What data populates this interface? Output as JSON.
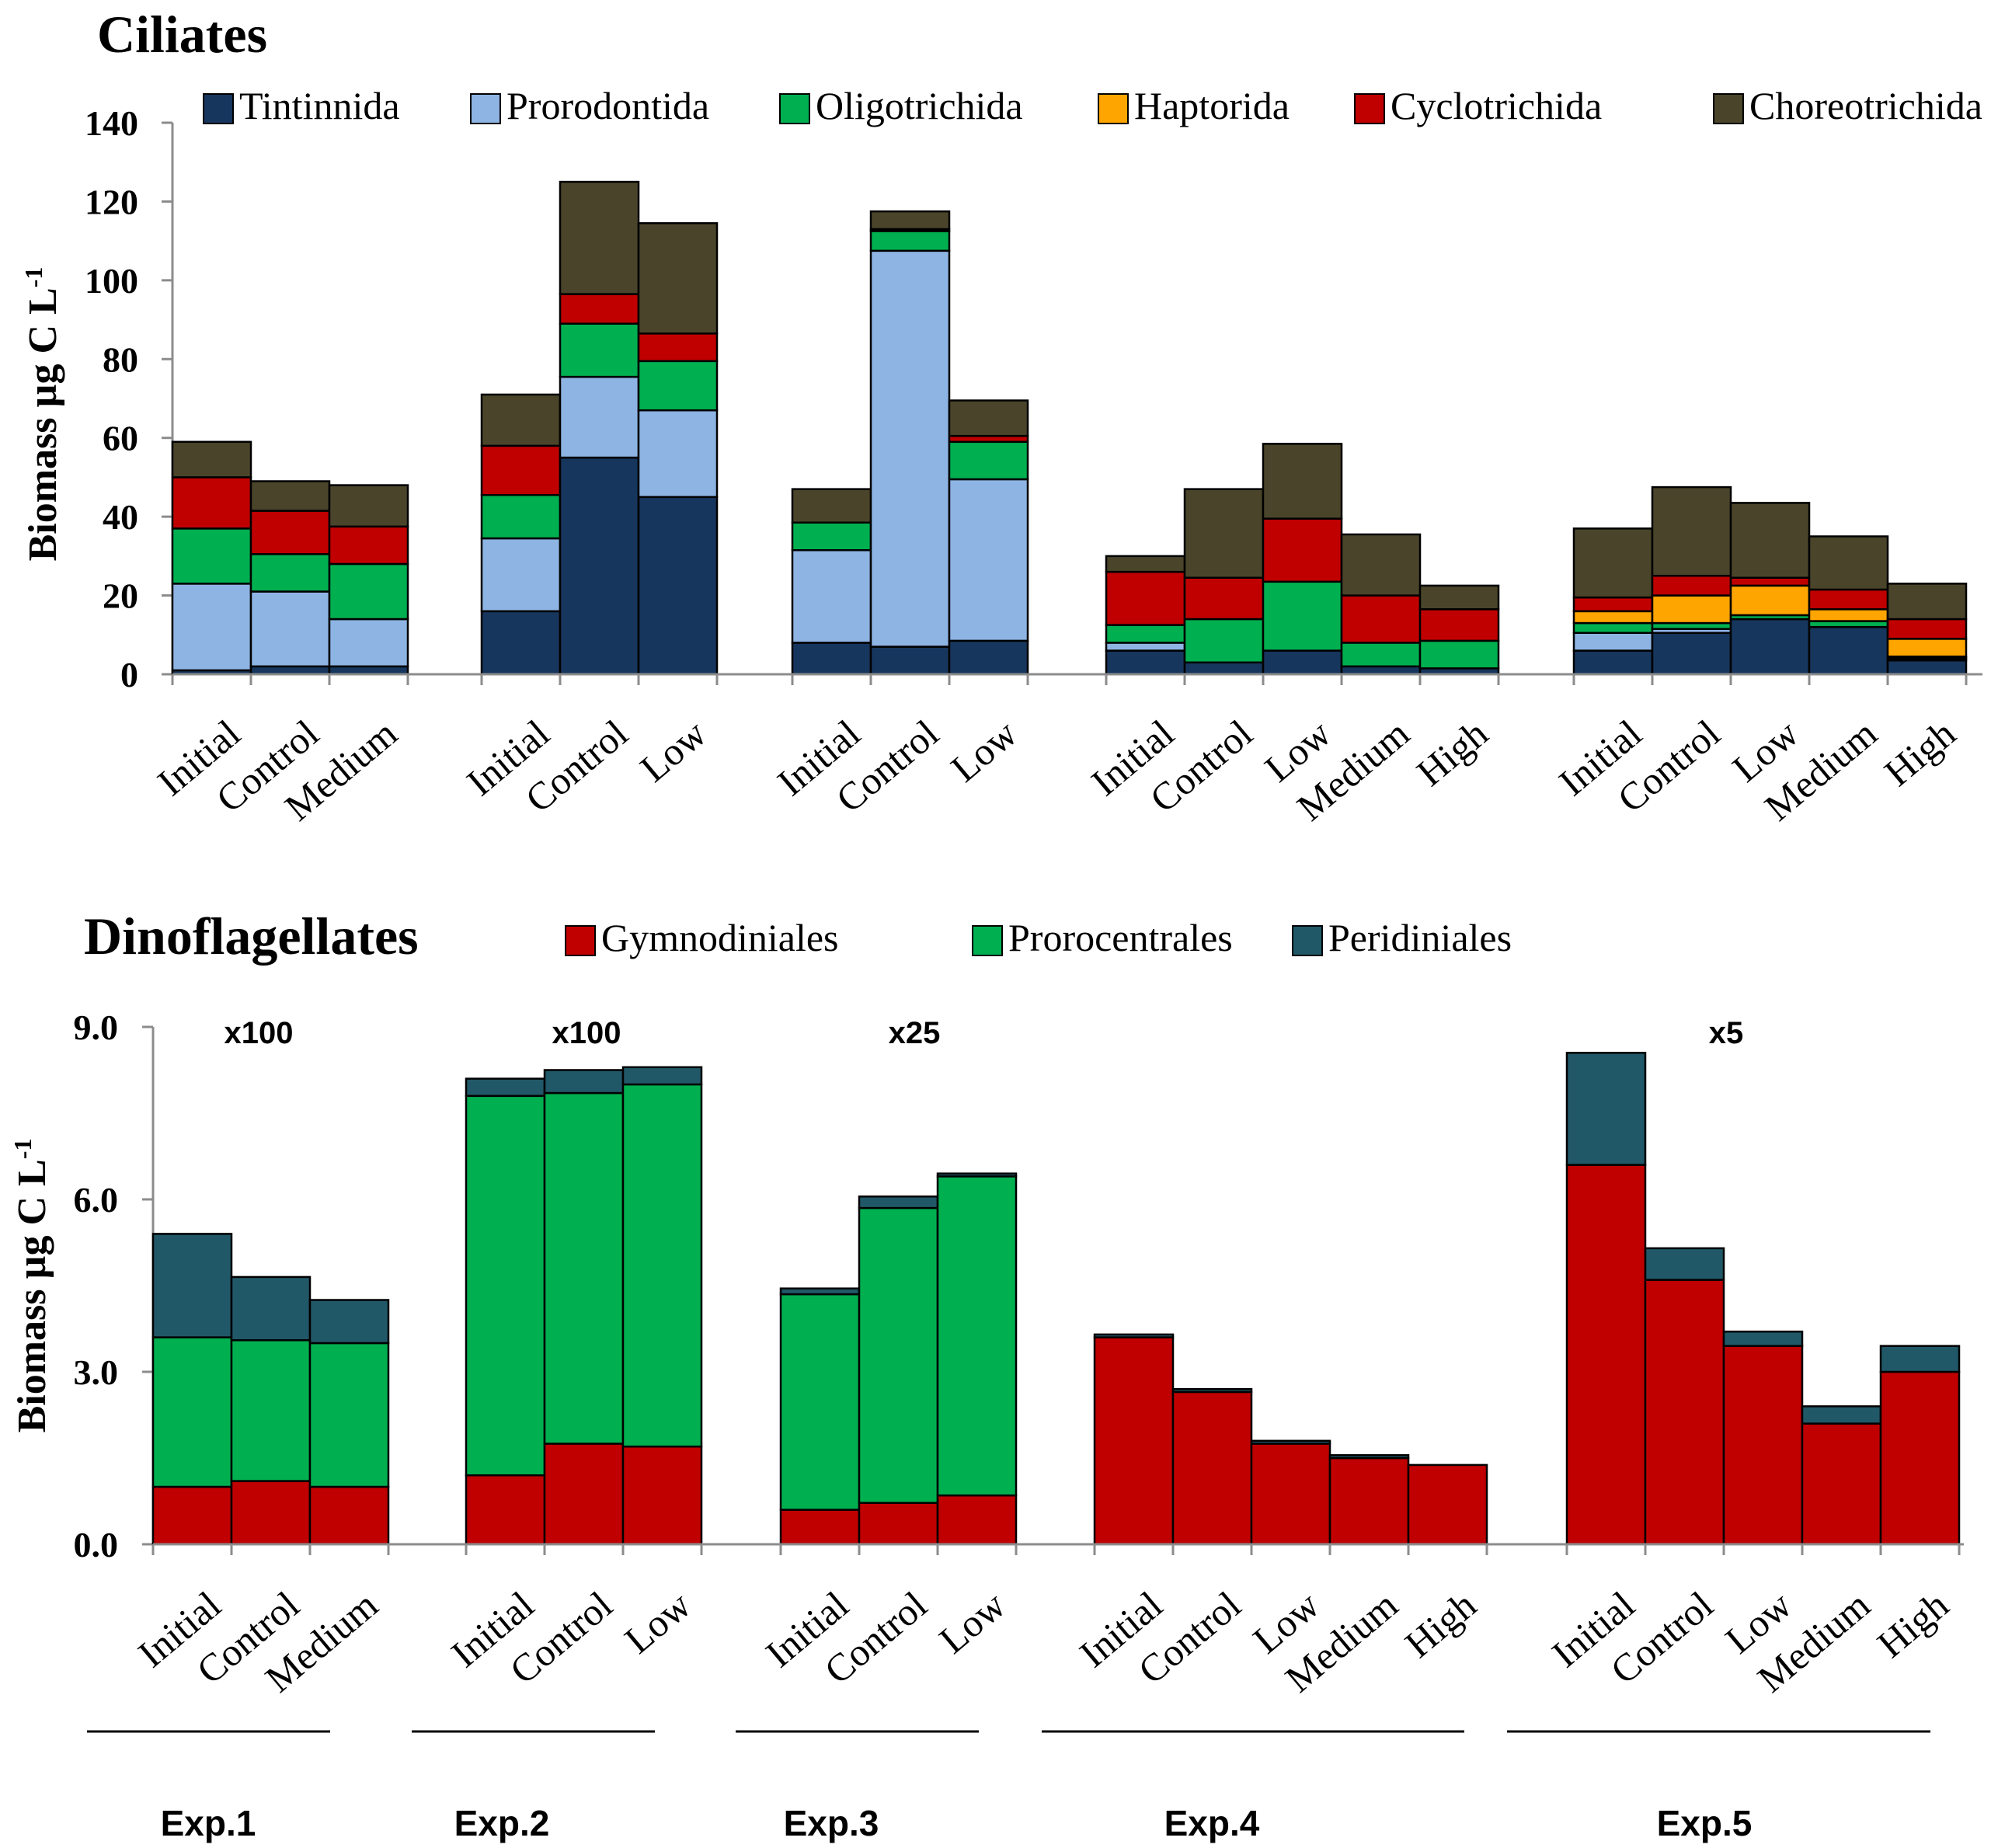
{
  "chart_data": [
    {
      "type": "bar",
      "stacked": true,
      "title": "Ciliates",
      "ylabel": "Biomass µg C L",
      "ylabel_superscript": "-1",
      "ylim": [
        0,
        140
      ],
      "yticks": [
        0,
        20,
        40,
        60,
        80,
        100,
        120,
        140
      ],
      "ytick_labels": [
        "0",
        "20",
        "40",
        "60",
        "80",
        "100",
        "120",
        "140"
      ],
      "legend": "top",
      "series": [
        {
          "name": "Tintinnida",
          "color": "#17365d"
        },
        {
          "name": "Prorodontida",
          "color": "#8eb4e3"
        },
        {
          "name": "Oligotrichida",
          "color": "#00b050"
        },
        {
          "name": "Haptorida",
          "color": "#ffa500"
        },
        {
          "name": "Cyclotrichida",
          "color": "#c00000"
        },
        {
          "name": "Choreotrichida",
          "color": "#4a452a"
        }
      ],
      "groups": [
        {
          "experiment": "Exp.1",
          "bars": [
            {
              "label": "Initial",
              "values": [
                1,
                22,
                14,
                0,
                13,
                9
              ]
            },
            {
              "label": "Control",
              "values": [
                2,
                19,
                9.5,
                0,
                11,
                7.5
              ]
            },
            {
              "label": "Medium",
              "values": [
                2,
                12,
                14,
                0,
                9.5,
                10.5
              ]
            }
          ]
        },
        {
          "experiment": "Exp.2",
          "bars": [
            {
              "label": "Initial",
              "values": [
                16,
                18.5,
                11,
                0,
                12.5,
                13
              ]
            },
            {
              "label": "Control",
              "values": [
                55,
                20.5,
                13.5,
                0,
                7.5,
                28.5
              ]
            },
            {
              "label": "Low",
              "values": [
                45,
                22,
                12.5,
                0,
                7,
                28
              ]
            }
          ]
        },
        {
          "experiment": "Exp.3",
          "bars": [
            {
              "label": "Initial",
              "values": [
                8,
                23.5,
                7,
                0,
                0,
                8.5
              ]
            },
            {
              "label": "Control",
              "values": [
                7,
                100.5,
                5,
                0,
                0.5,
                4.5
              ]
            },
            {
              "label": "Low",
              "values": [
                8.5,
                41,
                9.5,
                0,
                1.5,
                9
              ]
            }
          ]
        },
        {
          "experiment": "Exp.4",
          "bars": [
            {
              "label": "Initial",
              "values": [
                6,
                2,
                4.5,
                0,
                13.5,
                4
              ]
            },
            {
              "label": "Control",
              "values": [
                3,
                0,
                11,
                0,
                10.5,
                22.5
              ]
            },
            {
              "label": "Low",
              "values": [
                6,
                0,
                17.5,
                0,
                16,
                19
              ]
            },
            {
              "label": "Medium",
              "values": [
                2,
                0,
                6,
                0,
                12,
                15.5
              ]
            },
            {
              "label": "High",
              "values": [
                1.5,
                0,
                7,
                0,
                8,
                6
              ]
            }
          ]
        },
        {
          "experiment": "Exp.5",
          "bars": [
            {
              "label": "Initial",
              "values": [
                6,
                4.5,
                2.5,
                3,
                3.5,
                17.5
              ]
            },
            {
              "label": "Control",
              "values": [
                10.5,
                1,
                1.5,
                7,
                5,
                22.5
              ]
            },
            {
              "label": "Low",
              "values": [
                14,
                0,
                1,
                7.5,
                2,
                19
              ]
            },
            {
              "label": "Medium",
              "values": [
                12,
                0,
                1.5,
                3,
                5,
                13.5
              ]
            },
            {
              "label": "High",
              "values": [
                3.5,
                0.5,
                0.5,
                4.5,
                5,
                9
              ]
            }
          ]
        }
      ]
    },
    {
      "type": "bar",
      "stacked": true,
      "title": "Dinoflagellates",
      "ylabel": "Biomass µg C L",
      "ylabel_superscript": "-1",
      "ylim": [
        0,
        9
      ],
      "yticks": [
        0,
        3,
        6,
        9
      ],
      "ytick_labels": [
        "0.0",
        "3.0",
        "6.0",
        "9.0"
      ],
      "legend": "top",
      "series": [
        {
          "name": "Gymnodiniales",
          "color": "#c00000"
        },
        {
          "name": "Prorocentrales",
          "color": "#00b050"
        },
        {
          "name": "Peridiniales",
          "color": "#215868"
        }
      ],
      "groups": [
        {
          "experiment": "Exp.1",
          "multiplier": "x100",
          "bars": [
            {
              "label": "Initial",
              "values": [
                1.0,
                2.6,
                1.8
              ]
            },
            {
              "label": "Control",
              "values": [
                1.1,
                2.45,
                1.1
              ]
            },
            {
              "label": "Medium",
              "values": [
                1.0,
                2.5,
                0.75
              ]
            }
          ]
        },
        {
          "experiment": "Exp.2",
          "multiplier": "x100",
          "bars": [
            {
              "label": "Initial",
              "values": [
                1.2,
                6.6,
                0.3
              ]
            },
            {
              "label": "Control",
              "values": [
                1.75,
                6.1,
                0.4
              ]
            },
            {
              "label": "Low",
              "values": [
                1.7,
                6.3,
                0.3
              ]
            }
          ]
        },
        {
          "experiment": "Exp.3",
          "multiplier": "x25",
          "bars": [
            {
              "label": "Initial",
              "values": [
                0.6,
                3.75,
                0.1
              ]
            },
            {
              "label": "Control",
              "values": [
                0.72,
                5.13,
                0.2
              ]
            },
            {
              "label": "Low",
              "values": [
                0.85,
                5.55,
                0.05
              ]
            }
          ]
        },
        {
          "experiment": "Exp.4",
          "multiplier": "",
          "bars": [
            {
              "label": "Initial",
              "values": [
                3.6,
                0,
                0.05
              ]
            },
            {
              "label": "Control",
              "values": [
                2.65,
                0,
                0.05
              ]
            },
            {
              "label": "Low",
              "values": [
                1.75,
                0,
                0.05
              ]
            },
            {
              "label": "Medium",
              "values": [
                1.5,
                0,
                0.05
              ]
            },
            {
              "label": "High",
              "values": [
                1.38,
                0,
                0
              ]
            }
          ]
        },
        {
          "experiment": "Exp.5",
          "multiplier": "x5",
          "bars": [
            {
              "label": "Initial",
              "values": [
                6.6,
                0,
                1.95
              ]
            },
            {
              "label": "Control",
              "values": [
                4.6,
                0,
                0.55
              ]
            },
            {
              "label": "Low",
              "values": [
                3.45,
                0,
                0.25
              ]
            },
            {
              "label": "Medium",
              "values": [
                2.1,
                0,
                0.3
              ]
            },
            {
              "label": "High",
              "values": [
                3.0,
                0,
                0.45
              ]
            }
          ]
        }
      ]
    }
  ]
}
